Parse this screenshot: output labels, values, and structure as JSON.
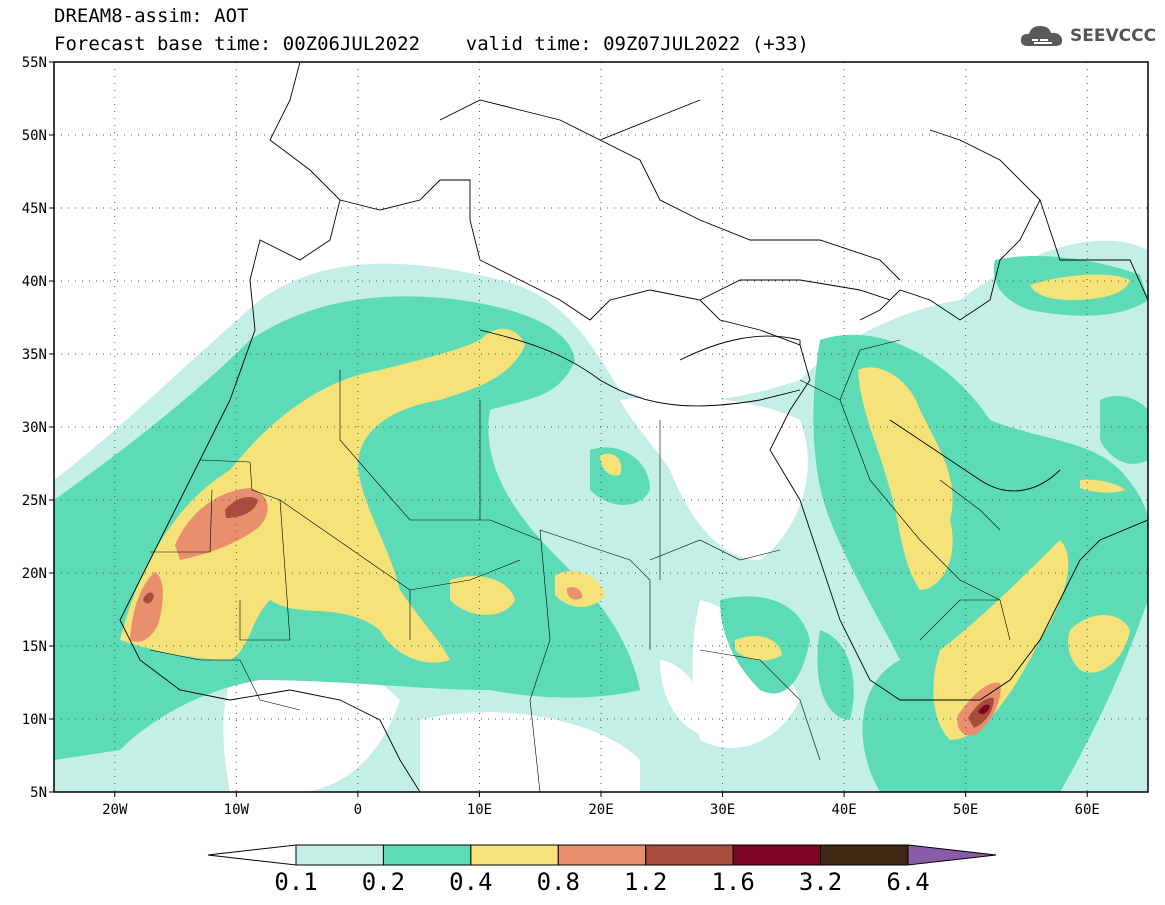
{
  "header": {
    "title_line1": "DREAM8-assim: AOT",
    "title_line2": "Forecast base time: 00Z06JUL2022    valid time: 09Z07JUL2022 (+33)",
    "logo_text": "SEEVCCC"
  },
  "map": {
    "projection": "equirectangular",
    "lon_range": [
      -25,
      65
    ],
    "lat_range": [
      5,
      55
    ],
    "lat_ticks": [
      {
        "value": 55,
        "label": "55N"
      },
      {
        "value": 50,
        "label": "50N"
      },
      {
        "value": 45,
        "label": "45N"
      },
      {
        "value": 40,
        "label": "40N"
      },
      {
        "value": 35,
        "label": "35N"
      },
      {
        "value": 30,
        "label": "30N"
      },
      {
        "value": 25,
        "label": "25N"
      },
      {
        "value": 20,
        "label": "20N"
      },
      {
        "value": 15,
        "label": "15N"
      },
      {
        "value": 10,
        "label": "10N"
      },
      {
        "value": 5,
        "label": "5N"
      }
    ],
    "lon_ticks": [
      {
        "value": -20,
        "label": "20W"
      },
      {
        "value": -10,
        "label": "10W"
      },
      {
        "value": 0,
        "label": "0"
      },
      {
        "value": 10,
        "label": "10E"
      },
      {
        "value": 20,
        "label": "20E"
      },
      {
        "value": 30,
        "label": "30E"
      },
      {
        "value": 40,
        "label": "40E"
      },
      {
        "value": 50,
        "label": "50E"
      },
      {
        "value": 60,
        "label": "60E"
      }
    ],
    "grid": "dotted"
  },
  "colorbar": {
    "levels": [
      "0.1",
      "0.2",
      "0.4",
      "0.8",
      "1.2",
      "1.6",
      "3.2",
      "6.4"
    ],
    "colors": [
      "#ffffff",
      "#c4efe6",
      "#5ddbb7",
      "#f5e278",
      "#e8906e",
      "#a94c3e",
      "#7d0522",
      "#3e2a14",
      "#8a5ca8"
    ]
  },
  "colors": {
    "very_light": "#c4efe6",
    "light": "#5ddbb7",
    "moderate": "#f5e278",
    "high": "#e8906e",
    "very_high": "#a94c3e",
    "extreme": "#7d0522"
  }
}
